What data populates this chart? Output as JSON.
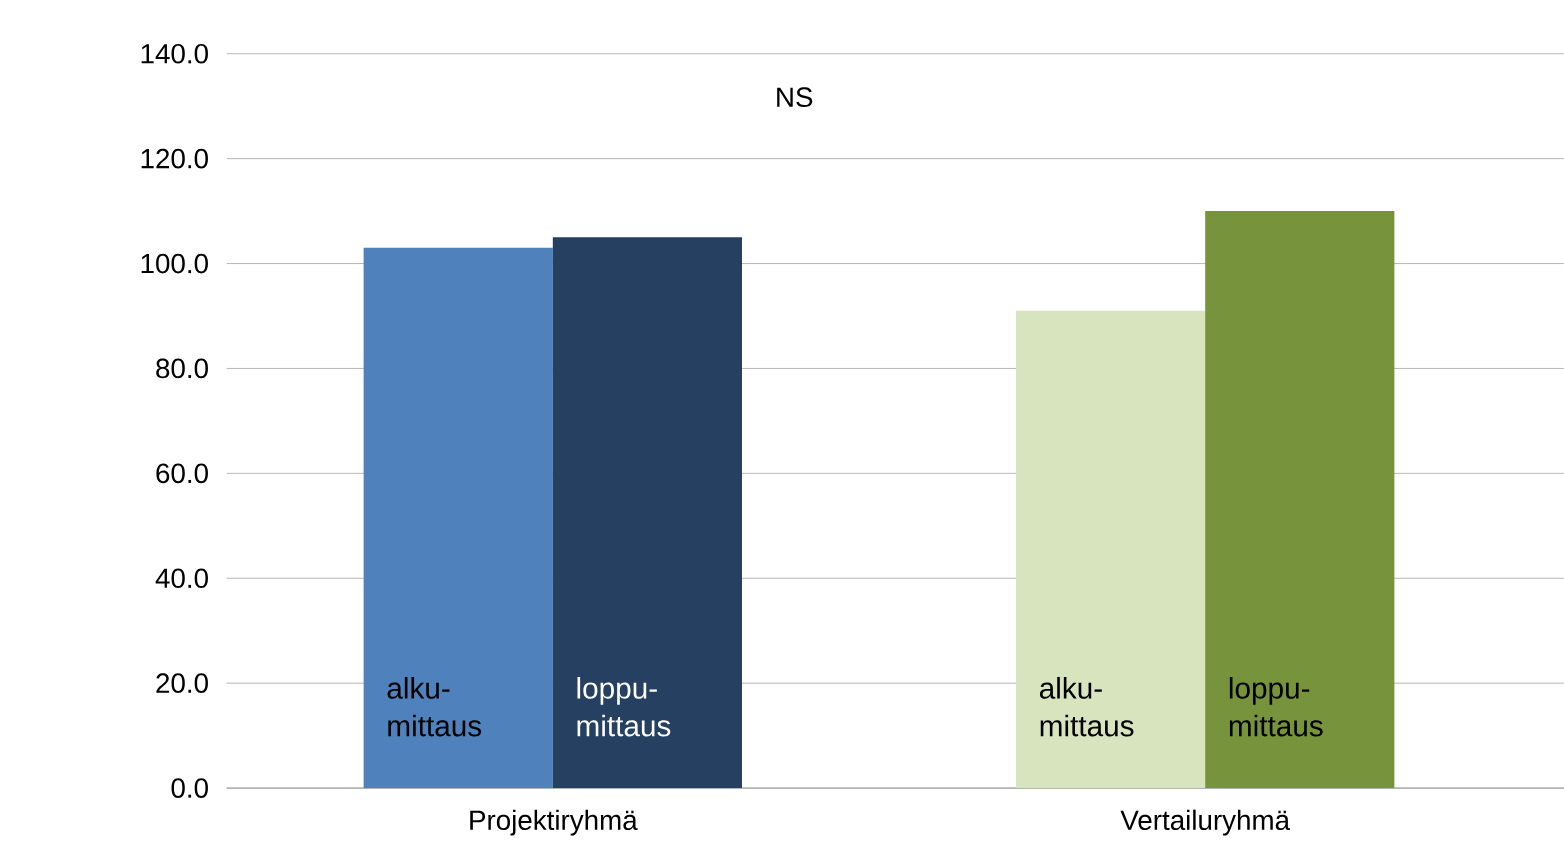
{
  "chart_data": {
    "type": "bar",
    "categories": [
      "Projektiryhmä",
      "Vertailuryhmä"
    ],
    "series": [
      {
        "name": "alku-mittaus",
        "values": [
          103,
          91
        ],
        "colors": [
          "#4f81bd",
          "#d7e4bd"
        ]
      },
      {
        "name": "loppu-mittaus",
        "values": [
          105,
          110
        ],
        "colors": [
          "#254061",
          "#77933c"
        ]
      }
    ],
    "ylim": [
      0,
      140
    ],
    "yticks": [
      {
        "value": 0,
        "label": "0.0"
      },
      {
        "value": 20,
        "label": "20.0"
      },
      {
        "value": 40,
        "label": "40.0"
      },
      {
        "value": 60,
        "label": "60.0"
      },
      {
        "value": 80,
        "label": "80.0"
      },
      {
        "value": 100,
        "label": "100.0"
      },
      {
        "value": 120,
        "label": "120.0"
      },
      {
        "value": 140,
        "label": "140.0"
      }
    ],
    "grid": "y",
    "annotations": [
      "NS"
    ]
  }
}
